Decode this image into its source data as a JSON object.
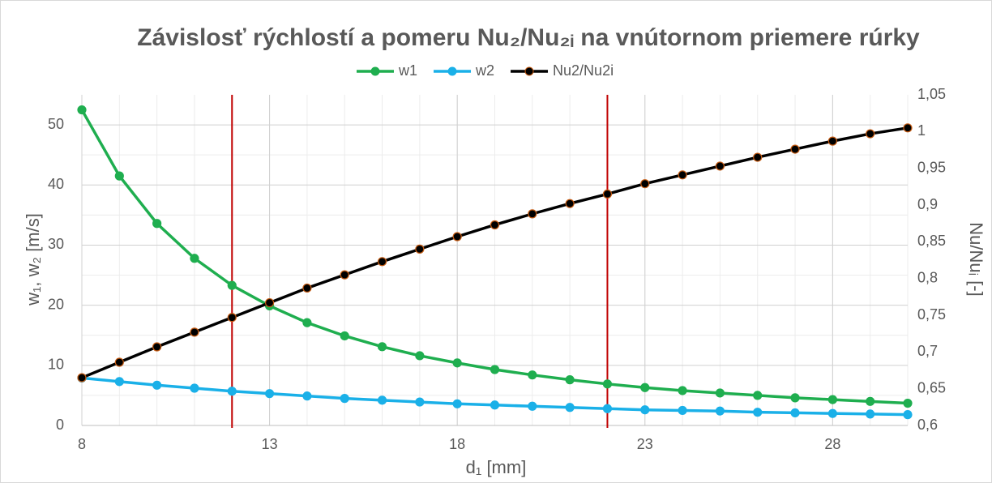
{
  "chart_data": {
    "type": "line",
    "title": "Závislosť rýchlostí a pomeru Nu₂/Nu₂ᵢ na vnútornom priemere rúrky",
    "x_label": "d₁ [mm]",
    "y_label": "w₁, w₂ [m/s]",
    "y2_label": "Nu/Nuᵢ [-]",
    "x": [
      8,
      9,
      10,
      11,
      12,
      13,
      14,
      15,
      16,
      17,
      18,
      19,
      20,
      21,
      22,
      23,
      24,
      25,
      26,
      27,
      28,
      29,
      30
    ],
    "series": [
      {
        "name": "w1",
        "color": "#1fae4f",
        "values": [
          52.5,
          41.5,
          33.6,
          27.8,
          23.3,
          19.9,
          17.1,
          14.9,
          13.1,
          11.6,
          10.4,
          9.3,
          8.4,
          7.6,
          6.9,
          6.3,
          5.8,
          5.4,
          5.0,
          4.6,
          4.3,
          4.0,
          3.7
        ]
      },
      {
        "name": "w2",
        "color": "#1ab0e8",
        "values": [
          7.9,
          7.3,
          6.7,
          6.2,
          5.7,
          5.3,
          4.9,
          4.5,
          4.2,
          3.9,
          3.6,
          3.4,
          3.2,
          3.0,
          2.8,
          2.6,
          2.5,
          2.4,
          2.2,
          2.1,
          2.0,
          1.9,
          1.8
        ]
      },
      {
        "name": "Nu2/Nu2i",
        "color": "#000000",
        "marker_edge": "#c55a11",
        "axis": "y2",
        "values": [
          0.665,
          0.686,
          0.707,
          0.727,
          0.747,
          0.767,
          0.787,
          0.805,
          0.823,
          0.84,
          0.857,
          0.873,
          0.888,
          0.902,
          0.915,
          0.929,
          0.941,
          0.953,
          0.965,
          0.976,
          0.987,
          0.997,
          1.005
        ]
      }
    ],
    "xlim": [
      8,
      30
    ],
    "xticks": [
      8,
      13,
      18,
      23,
      28
    ],
    "ylim": [
      0,
      55
    ],
    "yticks": [
      0,
      10,
      20,
      30,
      40,
      50
    ],
    "y2lim": [
      0.6,
      1.05
    ],
    "y2ticks": [
      {
        "value": 0.6,
        "label": "0,6"
      },
      {
        "value": 0.65,
        "label": "0,65"
      },
      {
        "value": 0.7,
        "label": "0,7"
      },
      {
        "value": 0.75,
        "label": "0,75"
      },
      {
        "value": 0.8,
        "label": "0,8"
      },
      {
        "value": 0.85,
        "label": "0,85"
      },
      {
        "value": 0.9,
        "label": "0,9"
      },
      {
        "value": 0.95,
        "label": "0,95"
      },
      1,
      {
        "value": 1.05,
        "label": "1,05"
      }
    ],
    "reference_lines": [
      12,
      22
    ],
    "reference_line_color": "#c00000",
    "grid": true,
    "legend": "top"
  }
}
